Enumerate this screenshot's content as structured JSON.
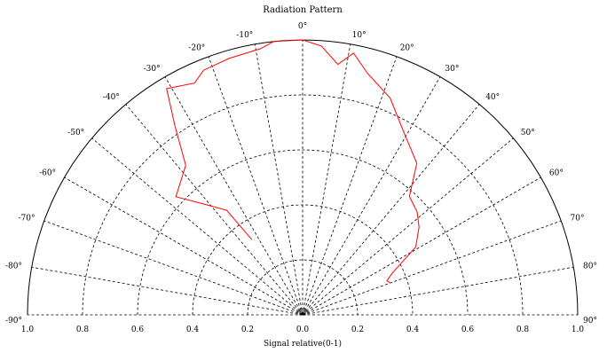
{
  "chart_data": {
    "type": "polar-line",
    "title": "Radiation Pattern",
    "xlabel": "Signal relative(0-1)",
    "angle_range": [
      -90,
      90
    ],
    "radius_range": [
      0,
      1
    ],
    "radial_gridlines": [
      0.2,
      0.4,
      0.6,
      0.8,
      1.0
    ],
    "angle_gridline_step": 10,
    "grid": true,
    "line_color": "#ff0000",
    "axis_tick_labels": [
      "1.0",
      "0.8",
      "0.6",
      "0.4",
      "0.2",
      "0.0",
      "0.2",
      "0.4",
      "0.6",
      "0.8",
      "1.0"
    ],
    "angle_tick_labels": [
      {
        "deg": -90,
        "label": "-90°"
      },
      {
        "deg": -80,
        "label": "-80°"
      },
      {
        "deg": -70,
        "label": "-70°"
      },
      {
        "deg": -60,
        "label": "-60°"
      },
      {
        "deg": -50,
        "label": "-50°"
      },
      {
        "deg": -40,
        "label": "-40°"
      },
      {
        "deg": -30,
        "label": "-30°"
      },
      {
        "deg": -20,
        "label": "-20°"
      },
      {
        "deg": -10,
        "label": "-10°"
      },
      {
        "deg": 0,
        "label": "0°"
      },
      {
        "deg": 10,
        "label": "10°"
      },
      {
        "deg": 20,
        "label": "20°"
      },
      {
        "deg": 30,
        "label": "30°"
      },
      {
        "deg": 40,
        "label": "40°"
      },
      {
        "deg": 50,
        "label": "50°"
      },
      {
        "deg": 60,
        "label": "60°"
      },
      {
        "deg": 70,
        "label": "70°"
      },
      {
        "deg": 80,
        "label": "80°"
      },
      {
        "deg": 90,
        "label": "90°"
      }
    ],
    "series": [
      {
        "points": [
          {
            "angle": -34,
            "r": 0.33
          },
          {
            "angle": -36,
            "r": 0.47
          },
          {
            "angle": -41,
            "r": 0.53
          },
          {
            "angle": -47,
            "r": 0.63
          },
          {
            "angle": -38,
            "r": 0.69
          },
          {
            "angle": -34,
            "r": 0.83
          },
          {
            "angle": -31,
            "r": 0.96
          },
          {
            "angle": -25,
            "r": 0.93
          },
          {
            "angle": -22,
            "r": 0.96
          },
          {
            "angle": -16,
            "r": 0.97
          },
          {
            "angle": -9,
            "r": 0.98
          },
          {
            "angle": -6,
            "r": 1.0
          },
          {
            "angle": 0,
            "r": 1.0
          },
          {
            "angle": 4,
            "r": 0.98
          },
          {
            "angle": 8,
            "r": 0.92
          },
          {
            "angle": 11,
            "r": 0.97
          },
          {
            "angle": 15,
            "r": 0.91
          },
          {
            "angle": 22,
            "r": 0.85
          },
          {
            "angle": 28,
            "r": 0.77
          },
          {
            "angle": 32,
            "r": 0.73
          },
          {
            "angle": 37,
            "r": 0.69
          },
          {
            "angle": 42,
            "r": 0.58
          },
          {
            "angle": 48,
            "r": 0.56
          },
          {
            "angle": 53,
            "r": 0.53
          },
          {
            "angle": 59,
            "r": 0.48
          },
          {
            "angle": 65,
            "r": 0.36
          },
          {
            "angle": 68,
            "r": 0.33
          },
          {
            "angle": 70,
            "r": 0.34
          }
        ]
      }
    ]
  }
}
